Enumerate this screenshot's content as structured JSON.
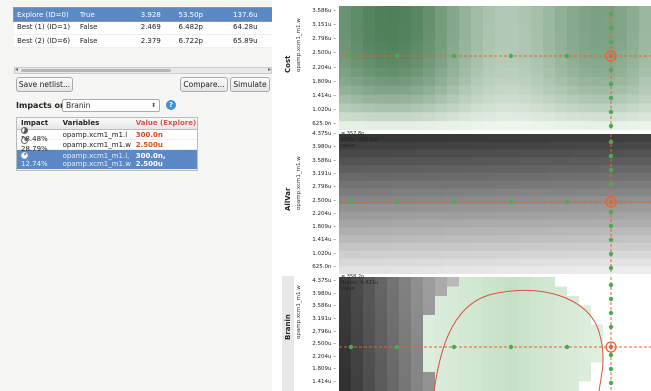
{
  "runs_table": {
    "rows": [
      {
        "name": "Explore (ID=0)",
        "flag": "True",
        "v1": "3.928",
        "v2": "53.50p",
        "v3": "137.6u",
        "selected": true
      },
      {
        "name": "Best (1) (ID=1)",
        "flag": "False",
        "v1": "2.469",
        "v2": "6.482p",
        "v3": "64.28u",
        "selected": false
      },
      {
        "name": "Best (2) (ID=6)",
        "flag": "False",
        "v1": "2.379",
        "v2": "6.722p",
        "v3": "65.89u",
        "selected": false
      }
    ]
  },
  "buttons": {
    "save_netlist": "Save netlist...",
    "compare": "Compare...",
    "simulate": "Simulate"
  },
  "impacts": {
    "label": "Impacts on:",
    "selected": "Branin",
    "help": "?",
    "headers": {
      "impact": "Impact",
      "variables": "Variables",
      "value": "Value (Explore)"
    },
    "rows": [
      {
        "pct": "58.48%",
        "vars": [
          "opamp.xcm1_m1.l"
        ],
        "vals": [
          "300.0n"
        ],
        "pie_fraction": 0.58
      },
      {
        "pct": "28.79%",
        "vars": [
          "opamp.xcm1_m1.w"
        ],
        "vals": [
          "2.500u"
        ],
        "pie_fraction": 0.29
      },
      {
        "pct": "12.74%",
        "vars": [
          "opamp.xcm1_m1.l,",
          "opamp.xcm1_m1.w"
        ],
        "vals": [
          "300.0n,",
          "2.500u"
        ],
        "pie_fraction": 0.13
      }
    ]
  },
  "plots": {
    "y_axis_label": "opamp.xcm1_m1.w",
    "cost": {
      "title": "Cost",
      "ticks": [
        "3.586u",
        "3.151u",
        "2.796u",
        "2.500u",
        "2.204u",
        "1.809u",
        "1.414u",
        "1.020u",
        "625.0n"
      ]
    },
    "allvar": {
      "title": "AllVar",
      "ticks": [
        "4.375u",
        "3.980u",
        "3.586u",
        "3.191u",
        "2.796u",
        "2.500u",
        "2.204u",
        "1.809u",
        "1.414u",
        "1.020u",
        "625.0n"
      ],
      "annot1": "= 357.8n",
      "annot2": "AllVar: 653.5m",
      "annot3": "value"
    },
    "branin": {
      "title": "Branin",
      "ticks": [
        "4.375u",
        "3.980u",
        "3.586u",
        "3.191u",
        "2.796u",
        "2.500u",
        "2.204u",
        "1.809u",
        "1.414u"
      ],
      "annot1": "= 358.2n",
      "annot2": "Branin: 4.421u",
      "annot3": "value"
    },
    "colors": {
      "crosshair": "#e8622e",
      "marker": "#4caa55",
      "cost_dark": "#1e5b2c",
      "allvar_dark": "#2a2a2a",
      "contour": "#d9533f"
    }
  }
}
